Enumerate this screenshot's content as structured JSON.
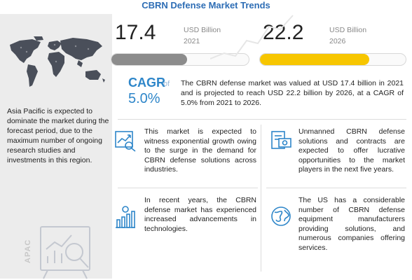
{
  "title": "CBRN Defense  Market Trends",
  "left_panel": {
    "description": "Asia Pacific is expected to dominate the market during the forecast period, due to the maximum number of ongoing research studies and investments in this region.",
    "region_label": "APAC"
  },
  "metrics": [
    {
      "value": "17.4",
      "unit_line1": "USD Billion",
      "unit_line2": "2021",
      "fill_fraction": 0.55,
      "color": "#8c8c8c"
    },
    {
      "value": "22.2",
      "unit_line1": "USD Billion",
      "unit_line2": "2026",
      "fill_fraction": 0.75,
      "color": "#f7c600"
    }
  ],
  "cagr": {
    "label": "CAGR",
    "of": "of",
    "value": "5.0%",
    "text": "The CBRN defense market was valued at USD 17.4 billion in 2021 and is projected to reach USD 22.2 billion by 2026, at a CAGR of 5.0% from 2021 to 2026."
  },
  "facts": [
    {
      "icon": "growth-chart-icon",
      "text": "This market is expected to witness exponential growth owing to the surge in the demand for CBRN defense solutions across industries."
    },
    {
      "icon": "money-contract-icon",
      "text": "Unmanned CBRN defense solutions and contracts are expected to offer lucrative opportunities to the market players in the next five years."
    },
    {
      "icon": "bar-chart-dollar-icon",
      "text": "In recent years, the CBRN defense market has experienced increased advancements in technologies."
    },
    {
      "icon": "globe-icon",
      "text": "The US has a considerable number of CBRN defense equipment manufacturers providing solutions, and numerous companies offering services."
    }
  ],
  "colors": {
    "accent_blue": "#2e86c9",
    "title_blue": "#2d6db5",
    "yellow": "#f7c600",
    "gray_bar": "#8c8c8c"
  }
}
